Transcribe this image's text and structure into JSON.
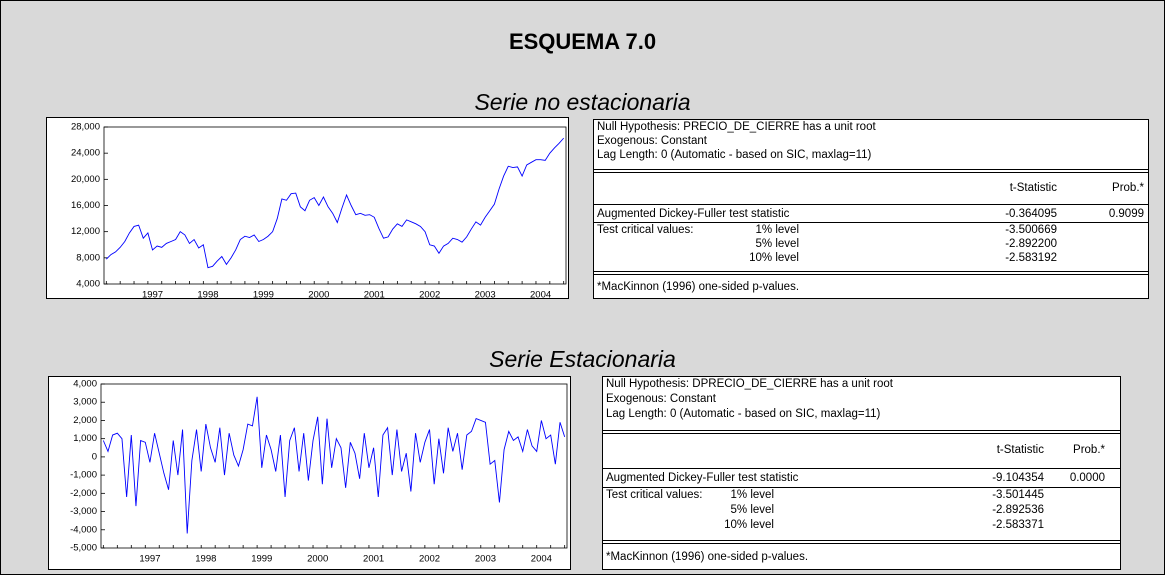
{
  "title": "ESQUEMA 7.0",
  "sections": [
    {
      "heading": "Serie no estacionaria",
      "table": {
        "null_hypothesis": "Null Hypothesis: PRECIO_DE_CIERRE has a unit root",
        "exogenous": "Exogenous: Constant",
        "lag_length": "Lag Length: 0 (Automatic - based on SIC, maxlag=11)",
        "columns": [
          "t-Statistic",
          "Prob.*"
        ],
        "adf": {
          "label": "Augmented Dickey-Fuller test statistic",
          "t": "-0.364095",
          "prob": "0.9099"
        },
        "critical": {
          "label": "Test critical values:",
          "rows": [
            [
              "1% level",
              "-3.500669"
            ],
            [
              "5% level",
              "-2.892200"
            ],
            [
              "10% level",
              "-2.583192"
            ]
          ]
        },
        "footnote": "*MacKinnon (1996) one-sided p-values."
      }
    },
    {
      "heading": "Serie Estacionaria",
      "table": {
        "null_hypothesis": "Null Hypothesis: DPRECIO_DE_CIERRE has a unit root",
        "exogenous": "Exogenous: Constant",
        "lag_length": "Lag Length: 0 (Automatic - based on SIC, maxlag=11)",
        "columns": [
          "t-Statistic",
          "Prob.*"
        ],
        "adf": {
          "label": "Augmented Dickey-Fuller test statistic",
          "t": "-9.104354",
          "prob": "0.0000"
        },
        "critical": {
          "label": "Test critical values:",
          "rows": [
            [
              "1% level",
              "-3.501445"
            ],
            [
              "5% level",
              "-2.892536"
            ],
            [
              "10% level",
              "-2.583371"
            ]
          ]
        },
        "footnote": "*MacKinnon (1996) one-sided p-values."
      }
    }
  ],
  "chart_data": [
    {
      "type": "line",
      "color": "#0000ff",
      "categories": [
        null,
        null,
        null,
        null,
        null,
        null,
        null,
        null,
        null,
        null,
        "1997",
        null,
        null,
        null,
        null,
        null,
        null,
        null,
        null,
        null,
        null,
        null,
        "1998",
        null,
        null,
        null,
        null,
        null,
        null,
        null,
        null,
        null,
        null,
        null,
        "1999",
        null,
        null,
        null,
        null,
        null,
        null,
        null,
        null,
        null,
        null,
        null,
        "2000",
        null,
        null,
        null,
        null,
        null,
        null,
        null,
        null,
        null,
        null,
        null,
        "2001",
        null,
        null,
        null,
        null,
        null,
        null,
        null,
        null,
        null,
        null,
        null,
        "2002",
        null,
        null,
        null,
        null,
        null,
        null,
        null,
        null,
        null,
        null,
        null,
        "2003",
        null,
        null,
        null,
        null,
        null,
        null,
        null,
        null,
        null,
        null,
        null,
        "2004",
        null,
        null,
        null,
        null,
        null
      ],
      "values": [
        7800,
        8500,
        8900,
        9600,
        10500,
        11800,
        12800,
        13000,
        11000,
        11800,
        9200,
        9800,
        9600,
        10200,
        10500,
        10800,
        12000,
        11500,
        10200,
        10800,
        9500,
        10000,
        6500,
        6700,
        7500,
        8200,
        7000,
        8000,
        9200,
        10800,
        11300,
        11100,
        11500,
        10500,
        10800,
        11300,
        12000,
        14000,
        17000,
        16800,
        17800,
        17900,
        15800,
        15200,
        16800,
        17200,
        16000,
        17300,
        15800,
        14800,
        13400,
        15600,
        17600,
        16000,
        14600,
        14800,
        14500,
        14600,
        14200,
        12500,
        11000,
        11200,
        12400,
        13200,
        12800,
        13800,
        13500,
        13200,
        12800,
        12000,
        10000,
        9800,
        8700,
        9800,
        10200,
        11000,
        10800,
        10400,
        11200,
        12400,
        13500,
        13000,
        14200,
        15200,
        16200,
        18500,
        20500,
        22000,
        21800,
        21900,
        20500,
        22200,
        22600,
        23000,
        23000,
        22900,
        24000,
        24800,
        25500,
        26300
      ],
      "ylim": [
        4000,
        28000
      ],
      "yticks": [
        {
          "value": 4000,
          "label": "4,000"
        },
        {
          "value": 8000,
          "label": "8,000"
        },
        {
          "value": 12000,
          "label": "12,000"
        },
        {
          "value": 16000,
          "label": "16,000"
        },
        {
          "value": 20000,
          "label": "20,000"
        },
        {
          "value": 24000,
          "label": "24,000"
        },
        {
          "value": 28000,
          "label": "28,000"
        }
      ]
    },
    {
      "type": "line",
      "color": "#0000ff",
      "categories": [
        null,
        null,
        null,
        null,
        null,
        null,
        null,
        null,
        null,
        null,
        "1997",
        null,
        null,
        null,
        null,
        null,
        null,
        null,
        null,
        null,
        null,
        null,
        "1998",
        null,
        null,
        null,
        null,
        null,
        null,
        null,
        null,
        null,
        null,
        null,
        "1999",
        null,
        null,
        null,
        null,
        null,
        null,
        null,
        null,
        null,
        null,
        null,
        "2000",
        null,
        null,
        null,
        null,
        null,
        null,
        null,
        null,
        null,
        null,
        null,
        "2001",
        null,
        null,
        null,
        null,
        null,
        null,
        null,
        null,
        null,
        null,
        null,
        "2002",
        null,
        null,
        null,
        null,
        null,
        null,
        null,
        null,
        null,
        null,
        null,
        "2003",
        null,
        null,
        null,
        null,
        null,
        null,
        null,
        null,
        null,
        null,
        null,
        "2004",
        null,
        null,
        null,
        null,
        null
      ],
      "values": [
        900,
        300,
        1200,
        1300,
        1000,
        -2200,
        1200,
        -2700,
        900,
        800,
        -300,
        1300,
        200,
        -900,
        -1800,
        900,
        -1000,
        1500,
        -4200,
        -200,
        1500,
        -800,
        1800,
        500,
        -300,
        1600,
        -1000,
        1300,
        100,
        -500,
        400,
        1800,
        1700,
        3300,
        -600,
        1200,
        400,
        -800,
        1200,
        -2200,
        900,
        1600,
        -800,
        1300,
        -1300,
        900,
        2200,
        -1500,
        2100,
        -600,
        1000,
        500,
        -1700,
        800,
        200,
        -1200,
        1300,
        -600,
        500,
        -2200,
        1200,
        1600,
        -1000,
        1500,
        -800,
        200,
        -1900,
        1300,
        -300,
        800,
        1500,
        -1500,
        1000,
        -900,
        1600,
        300,
        1300,
        -700,
        1200,
        1400,
        2100,
        2000,
        1900,
        -400,
        -200,
        -2500,
        400,
        1400,
        900,
        1100,
        300,
        1500,
        600,
        300,
        2000,
        1000,
        1200,
        -400,
        1900,
        1100
      ],
      "ylim": [
        -5000,
        4000
      ],
      "yticks": [
        {
          "value": -5000,
          "label": "-5,000"
        },
        {
          "value": -4000,
          "label": "-4,000"
        },
        {
          "value": -3000,
          "label": "-3,000"
        },
        {
          "value": -2000,
          "label": "-2,000"
        },
        {
          "value": -1000,
          "label": "-1,000"
        },
        0,
        {
          "value": 1000,
          "label": "1,000"
        },
        {
          "value": 2000,
          "label": "2,000"
        },
        {
          "value": 3000,
          "label": "3,000"
        },
        {
          "value": 4000,
          "label": "4,000"
        }
      ]
    }
  ]
}
